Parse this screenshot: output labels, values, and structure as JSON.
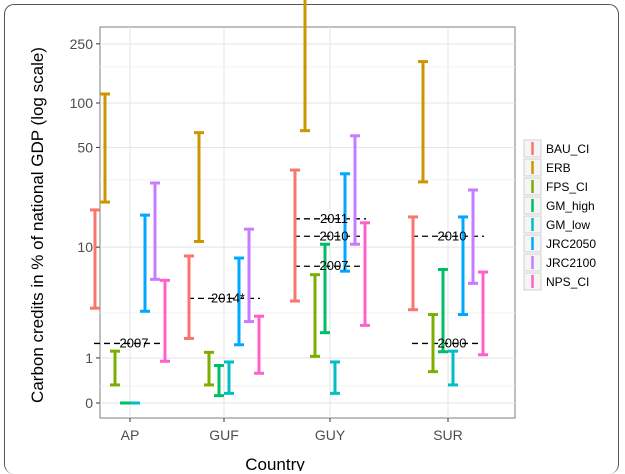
{
  "chart_data": {
    "type": "errorbar",
    "xlabel": "Country",
    "ylabel": "Carbon credits in % of national GDP (log scale)",
    "y_scale": "log",
    "ylim": [
      0,
      800
    ],
    "y_ticks": [
      0,
      1,
      10,
      50,
      100,
      250
    ],
    "grid": true,
    "legend_position": "right",
    "categories": [
      "AP",
      "GUF",
      "GUY",
      "SUR"
    ],
    "series": [
      {
        "name": "BAU_CI",
        "color": "#F8766D",
        "ranges": [
          [
            3.3,
            18.5
          ],
          [
            1.7,
            8.6
          ],
          [
            3.8,
            35
          ],
          [
            3.2,
            16.5
          ]
        ]
      },
      {
        "name": "ERB",
        "color": "#CD9600",
        "ranges": [
          [
            21,
            115
          ],
          [
            11,
            63
          ],
          [
            65,
            590
          ],
          [
            29,
            190
          ]
        ]
      },
      {
        "name": "FPS_CI",
        "color": "#7CAE00",
        "ranges": [
          [
            0.32,
            1.22
          ],
          [
            0.32,
            1.18
          ],
          [
            1.05,
            6.2
          ],
          [
            0.62,
            2.9
          ]
        ]
      },
      {
        "name": "GM_high",
        "color": "#00BE67",
        "ranges": [
          [
            0,
            0
          ],
          [
            0.12,
            0.78
          ],
          [
            1.95,
            10.5
          ],
          [
            1.2,
            6.8
          ]
        ]
      },
      {
        "name": "GM_low",
        "color": "#00BFC4",
        "ranges": [
          [
            0,
            0
          ],
          [
            0.16,
            0.88
          ],
          [
            0.16,
            0.88
          ],
          [
            0.32,
            1.22
          ]
        ]
      },
      {
        "name": "JRC2050",
        "color": "#00A9FF",
        "ranges": [
          [
            3.1,
            17
          ],
          [
            1.45,
            8.3
          ],
          [
            6.6,
            33
          ],
          [
            2.9,
            16.5
          ]
        ]
      },
      {
        "name": "JRC2100",
        "color": "#C77CFF",
        "ranges": [
          [
            5.7,
            28.5
          ],
          [
            2.5,
            13.5
          ],
          [
            10.5,
            60
          ],
          [
            5.3,
            25.5
          ]
        ]
      },
      {
        "name": "NPS_CI",
        "color": "#FF61CC",
        "ranges": [
          [
            0.9,
            5.6
          ],
          [
            0.58,
            2.8
          ],
          [
            2.3,
            15
          ],
          [
            1.1,
            6.5
          ]
        ]
      }
    ],
    "reference_lines": [
      {
        "category": "AP",
        "value": 1.5,
        "label": "2007"
      },
      {
        "category": "GUF",
        "value": 4.0,
        "label": "2014*"
      },
      {
        "category": "GUY",
        "value": 16.0,
        "label": "2011"
      },
      {
        "category": "GUY",
        "value": 12.0,
        "label": "2010"
      },
      {
        "category": "GUY",
        "value": 7.2,
        "label": "2007"
      },
      {
        "category": "SUR",
        "value": 12.0,
        "label": "2010"
      },
      {
        "category": "SUR",
        "value": 1.5,
        "label": "2000"
      }
    ]
  }
}
